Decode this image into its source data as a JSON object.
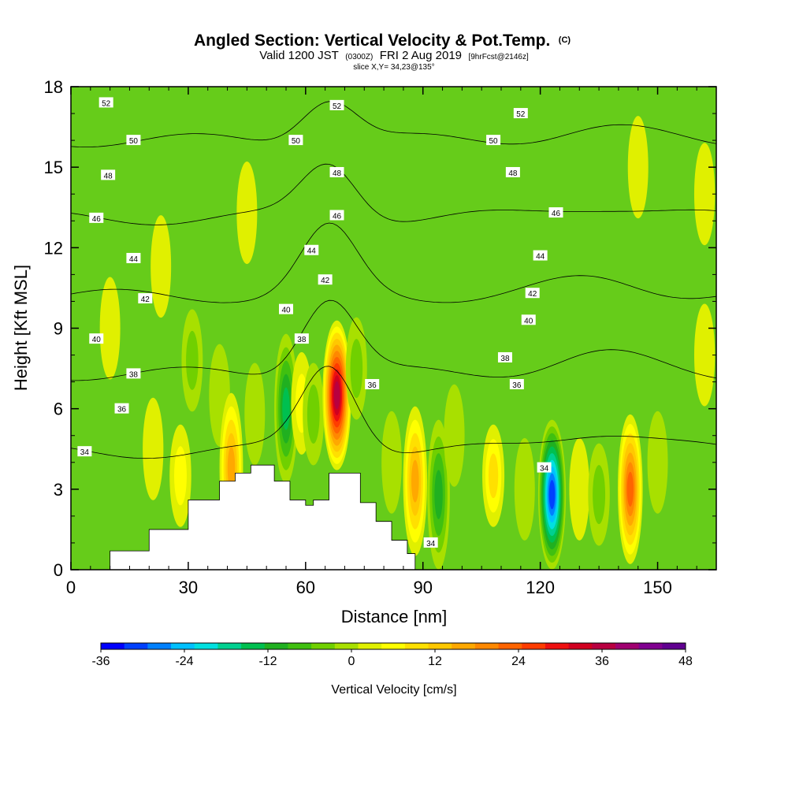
{
  "header": {
    "title_main": "Angled Section: Vertical Velocity & Pot.Temp.",
    "title_suffix": "(C)",
    "valid_pre": "Valid 1200 JST",
    "valid_utc": "(0300Z)",
    "valid_date": "FRI 2 Aug 2019",
    "valid_fcst": "[9hrFcst@2146z]",
    "slice": "slice X,Y= 34,23@135°"
  },
  "chart_data": {
    "type": "heatmap",
    "xlabel": "Distance [nm]",
    "ylabel": "Height [Kft MSL]",
    "xlim": [
      0,
      165
    ],
    "ylim": [
      0,
      18
    ],
    "x_ticks": [
      "0",
      "30",
      "60",
      "90",
      "120",
      "150"
    ],
    "x_tick_values": [
      0,
      30,
      60,
      90,
      120,
      150
    ],
    "y_ticks": [
      "0",
      "3",
      "6",
      "9",
      "12",
      "15",
      "18"
    ],
    "y_tick_values": [
      0,
      3,
      6,
      9,
      12,
      15,
      18
    ],
    "colorbar": {
      "title": "Vertical Velocity [cm/s]",
      "labels": [
        "-36",
        "-24",
        "-12",
        "0",
        "12",
        "24",
        "36",
        "48"
      ],
      "label_values": [
        -36,
        -24,
        -12,
        0,
        12,
        24,
        36,
        48
      ],
      "min": -36,
      "max": 48,
      "colors": [
        "#0000ff",
        "#0040ff",
        "#0080ff",
        "#00c0ff",
        "#00e0e0",
        "#00d090",
        "#00c050",
        "#20b020",
        "#40c010",
        "#70d000",
        "#a8e000",
        "#e0f000",
        "#ffff00",
        "#ffe000",
        "#ffc800",
        "#ffa800",
        "#ff8800",
        "#ff6400",
        "#ff3c00",
        "#ee1010",
        "#d00020",
        "#b80040",
        "#a00070",
        "#800090",
        "#600090"
      ]
    },
    "velocity_cells": [
      {
        "x": 10,
        "z": 9.0,
        "w": 3
      },
      {
        "x": 21,
        "z": 4.5,
        "w": 4
      },
      {
        "x": 23,
        "z": 11.3,
        "w": 3
      },
      {
        "x": 28,
        "z": 3.5,
        "w": 8
      },
      {
        "x": 31,
        "z": 7.8,
        "w": -6
      },
      {
        "x": 38,
        "z": 6.5,
        "w": -5
      },
      {
        "x": 41,
        "z": 3.8,
        "w": 16
      },
      {
        "x": 45,
        "z": 13.3,
        "w": 3
      },
      {
        "x": 47,
        "z": 5.8,
        "w": -3
      },
      {
        "x": 55,
        "z": 6.0,
        "w": -16
      },
      {
        "x": 59,
        "z": 6.2,
        "w": 6
      },
      {
        "x": 62,
        "z": 5.8,
        "w": -7
      },
      {
        "x": 68,
        "z": 6.5,
        "w": 38
      },
      {
        "x": 73,
        "z": 7.5,
        "w": -6
      },
      {
        "x": 82,
        "z": 4.0,
        "w": -2
      },
      {
        "x": 88,
        "z": 3.3,
        "w": 18
      },
      {
        "x": 94,
        "z": 2.8,
        "w": -12
      },
      {
        "x": 98,
        "z": 5.0,
        "w": -4
      },
      {
        "x": 108,
        "z": 3.5,
        "w": 10
      },
      {
        "x": 116,
        "z": 3.0,
        "w": -3
      },
      {
        "x": 123,
        "z": 2.8,
        "w": -34
      },
      {
        "x": 130,
        "z": 3.0,
        "w": 2
      },
      {
        "x": 135,
        "z": 2.8,
        "w": -8
      },
      {
        "x": 143,
        "z": 3.0,
        "w": 22
      },
      {
        "x": 150,
        "z": 4.0,
        "w": -3
      },
      {
        "x": 145,
        "z": 15.0,
        "w": 3
      },
      {
        "x": 162,
        "z": 8.0,
        "w": 4
      },
      {
        "x": 162,
        "z": 14.0,
        "w": 4
      }
    ],
    "isentropes": [
      {
        "value": 34,
        "label": "34",
        "label_at": [
          [
            3.5,
            4.4
          ],
          [
            92,
            1.0
          ],
          [
            121,
            3.8
          ]
        ]
      },
      {
        "value": 36,
        "label": "36",
        "label_at": [
          [
            13,
            6.0
          ],
          [
            77,
            6.9
          ],
          [
            114,
            6.9
          ]
        ]
      },
      {
        "value": 38,
        "label": "38",
        "label_at": [
          [
            16,
            7.3
          ],
          [
            59,
            8.6
          ],
          [
            111,
            7.9
          ]
        ]
      },
      {
        "value": 40,
        "label": "40",
        "label_at": [
          [
            6.5,
            8.6
          ],
          [
            55,
            9.7
          ],
          [
            117,
            9.3
          ]
        ]
      },
      {
        "value": 42,
        "label": "42",
        "label_at": [
          [
            19,
            10.1
          ],
          [
            65,
            10.8
          ],
          [
            118,
            10.3
          ]
        ]
      },
      {
        "value": 44,
        "label": "44",
        "label_at": [
          [
            16,
            11.6
          ],
          [
            61.5,
            11.9
          ],
          [
            120,
            11.7
          ]
        ]
      },
      {
        "value": 46,
        "label": "46",
        "label_at": [
          [
            6.5,
            13.1
          ],
          [
            68,
            13.2
          ],
          [
            124,
            13.3
          ]
        ]
      },
      {
        "value": 48,
        "label": "48",
        "label_at": [
          [
            9.5,
            14.7
          ],
          [
            68,
            14.8
          ],
          [
            113,
            14.8
          ]
        ]
      },
      {
        "value": 50,
        "label": "50",
        "label_at": [
          [
            16,
            16.0
          ],
          [
            57.5,
            16.0
          ],
          [
            108,
            16.0
          ]
        ]
      },
      {
        "value": 52,
        "label": "52",
        "label_at": [
          [
            9,
            17.4
          ],
          [
            68,
            17.3
          ],
          [
            115,
            17.0
          ]
        ]
      }
    ],
    "terrain_profile": [
      [
        10,
        0.7
      ],
      [
        20,
        1.5
      ],
      [
        30,
        2.6
      ],
      [
        38,
        3.3
      ],
      [
        42,
        3.6
      ],
      [
        46,
        3.9
      ],
      [
        52,
        3.3
      ],
      [
        56,
        2.6
      ],
      [
        60,
        2.4
      ],
      [
        62,
        2.6
      ],
      [
        66,
        3.6
      ],
      [
        70,
        3.6
      ],
      [
        74,
        2.5
      ],
      [
        78,
        1.8
      ],
      [
        82,
        1.1
      ],
      [
        86,
        0.6
      ],
      [
        88,
        0.3
      ]
    ]
  }
}
